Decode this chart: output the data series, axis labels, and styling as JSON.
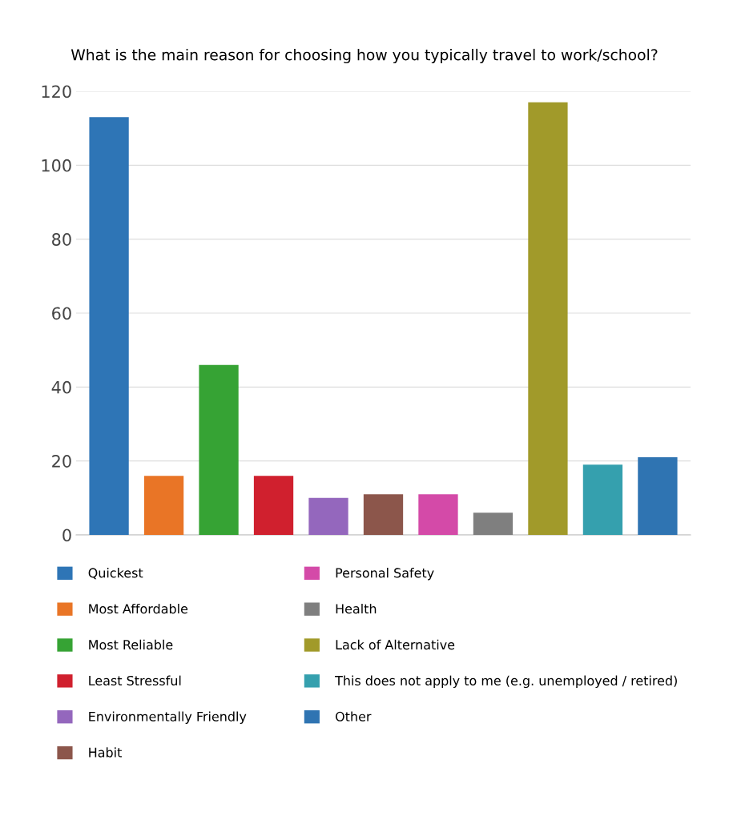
{
  "chart_data": {
    "type": "bar",
    "title": "What is the main reason for choosing how you typically travel to work/school?",
    "categories": [
      null,
      null,
      null,
      null,
      null,
      null,
      null,
      null,
      null,
      null,
      null
    ],
    "series": [
      {
        "name": "Quickest",
        "color": "#2e75b6",
        "values": [
          113,
          null,
          null,
          null,
          null,
          null,
          null,
          null,
          null,
          null,
          null
        ]
      },
      {
        "name": "Most Affordable",
        "color": "#e97526",
        "values": [
          null,
          16,
          null,
          null,
          null,
          null,
          null,
          null,
          null,
          null,
          null
        ]
      },
      {
        "name": "Most Reliable",
        "color": "#36a334",
        "values": [
          null,
          null,
          46,
          null,
          null,
          null,
          null,
          null,
          null,
          null,
          null
        ]
      },
      {
        "name": "Least Stressful",
        "color": "#d0202e",
        "values": [
          null,
          null,
          null,
          16,
          null,
          null,
          null,
          null,
          null,
          null,
          null
        ]
      },
      {
        "name": "Environmentally Friendly",
        "color": "#9467bd",
        "values": [
          null,
          null,
          null,
          null,
          10,
          null,
          null,
          null,
          null,
          null,
          null
        ]
      },
      {
        "name": "Habit",
        "color": "#8c564b",
        "values": [
          null,
          null,
          null,
          null,
          null,
          11,
          null,
          null,
          null,
          null,
          null
        ]
      },
      {
        "name": "Personal Safety",
        "color": "#d44aa8",
        "values": [
          null,
          null,
          null,
          null,
          null,
          null,
          11,
          null,
          null,
          null,
          null
        ]
      },
      {
        "name": "Health",
        "color": "#7f7f7f",
        "values": [
          null,
          null,
          null,
          null,
          null,
          null,
          null,
          6,
          null,
          null,
          null
        ]
      },
      {
        "name": "Lack of Alternative",
        "color": "#a19a2a",
        "values": [
          null,
          null,
          null,
          null,
          null,
          null,
          null,
          null,
          117,
          null,
          null
        ]
      },
      {
        "name": "This does not apply to me (e.g. unemployed / retired)",
        "color": "#35a0ae",
        "values": [
          null,
          null,
          null,
          null,
          null,
          null,
          null,
          null,
          null,
          19,
          null
        ]
      },
      {
        "name": "Other",
        "color": "#2f74b2",
        "values": [
          null,
          null,
          null,
          null,
          null,
          null,
          null,
          null,
          null,
          null,
          21
        ]
      }
    ],
    "ylim": [
      0,
      120
    ],
    "yticks": [
      0,
      20,
      40,
      60,
      80,
      100,
      120
    ],
    "grid": "y",
    "legend": "bottom",
    "tick_labels": "y"
  }
}
